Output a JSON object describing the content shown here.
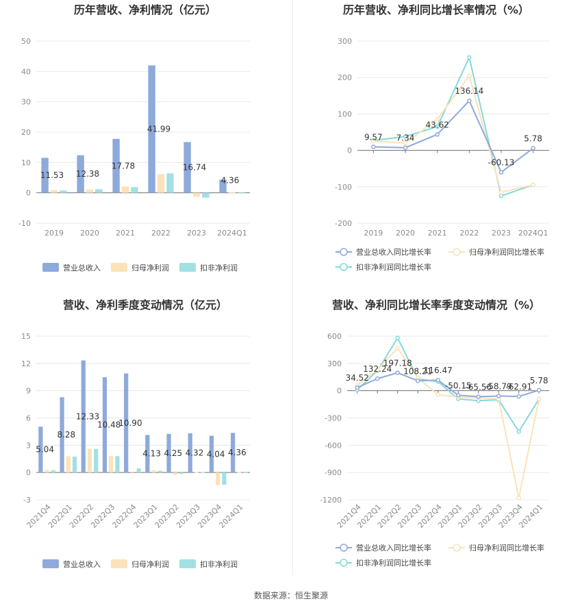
{
  "source": "数据来源：恒生聚源",
  "chart_data": [
    {
      "type": "bar",
      "title": "历年营收、净利情况（亿元）",
      "categories": [
        "2019",
        "2020",
        "2021",
        "2022",
        "2023",
        "2024Q1"
      ],
      "ylim": [
        -10,
        50
      ],
      "yticks": [
        -10,
        0,
        10,
        20,
        30,
        40,
        50
      ],
      "series": [
        {
          "name": "营业总收入",
          "color": "#8eaadb",
          "values": [
            11.53,
            12.38,
            17.78,
            41.99,
            16.74,
            4.36
          ],
          "labels": [
            "11.53",
            "12.38",
            "17.78",
            "41.99",
            "16.74",
            "4.36"
          ]
        },
        {
          "name": "归母净利润",
          "color": "#fbe2b8",
          "values": [
            0.9,
            1.1,
            2.1,
            6.2,
            -1.3,
            0.1
          ],
          "labels": []
        },
        {
          "name": "扣非净利润",
          "color": "#a3e0e3",
          "values": [
            0.8,
            1.2,
            1.9,
            6.4,
            -1.6,
            0.05
          ],
          "labels": []
        }
      ],
      "legend": "bottom"
    },
    {
      "type": "line",
      "title": "历年营收、净利同比增长率情况（%）",
      "categories": [
        "2019",
        "2020",
        "2021",
        "2022",
        "2023",
        "2024Q1"
      ],
      "ylim": [
        -200,
        300
      ],
      "yticks": [
        -200,
        -100,
        0,
        100,
        200,
        300
      ],
      "series": [
        {
          "name": "营业总收入同比增长率",
          "color": "#8eaadb",
          "values": [
            9.57,
            7.34,
            43.62,
            136.14,
            -60.13,
            5.78
          ],
          "labels": [
            "9.57",
            "7.34",
            "43.62",
            "136.14",
            "-60.13",
            "5.78"
          ]
        },
        {
          "name": "归母净利润同比增长率",
          "color": "#fbe2b8",
          "values": [
            25,
            20,
            85,
            205,
            -115,
            -95
          ],
          "labels": []
        },
        {
          "name": "扣非净利润同比增长率",
          "color": "#85d8db",
          "values": [
            27,
            38,
            65,
            255,
            -125,
            -95
          ],
          "labels": []
        }
      ],
      "legend": "bottom"
    },
    {
      "type": "bar",
      "title": "营收、净利季度变动情况（亿元）",
      "categories": [
        "2021Q4",
        "2022Q1",
        "2022Q2",
        "2022Q3",
        "2022Q4",
        "2023Q1",
        "2023Q2",
        "2023Q3",
        "2023Q4",
        "2024Q1"
      ],
      "ylim": [
        -3,
        15
      ],
      "yticks": [
        -3,
        0,
        3,
        6,
        9,
        12,
        15
      ],
      "series": [
        {
          "name": "营业总收入",
          "color": "#8eaadb",
          "values": [
            5.04,
            8.28,
            12.33,
            10.48,
            10.9,
            4.13,
            4.25,
            4.32,
            4.04,
            4.36
          ],
          "labels": [
            "5.04",
            "8.28",
            "12.33",
            "10.48",
            "10.90",
            "4.13",
            "4.25",
            "4.32",
            "4.04",
            "4.36"
          ]
        },
        {
          "name": "归母净利润",
          "color": "#fbe2b8",
          "values": [
            0.3,
            1.8,
            2.6,
            1.8,
            0.1,
            0.25,
            -0.25,
            0.05,
            -1.4,
            0.05
          ],
          "labels": []
        },
        {
          "name": "扣非净利润",
          "color": "#a3e0e3",
          "values": [
            0.25,
            1.75,
            2.6,
            1.8,
            0.45,
            0.2,
            -0.15,
            0.05,
            -1.35,
            0.03
          ],
          "labels": []
        }
      ],
      "legend": "bottom"
    },
    {
      "type": "line",
      "title": "营收、净利同比增长率季度变动情况（%）",
      "categories": [
        "2021Q4",
        "2022Q1",
        "2022Q2",
        "2022Q3",
        "2022Q4",
        "2023Q1",
        "2023Q2",
        "2023Q3",
        "2023Q4",
        "2024Q1"
      ],
      "ylim": [
        -1200,
        600
      ],
      "yticks": [
        -1200,
        -900,
        -600,
        -300,
        0,
        300,
        600
      ],
      "series": [
        {
          "name": "营业总收入同比增长率",
          "color": "#8eaadb",
          "values": [
            34.52,
            132.24,
            197.18,
            108.21,
            116.47,
            -50.15,
            -65.56,
            -58.79,
            -62.91,
            5.78
          ],
          "labels": [
            "34.52",
            "132.24",
            "197.18",
            "108.21",
            "116.47",
            "-50.15",
            "-65.56",
            "-58.79",
            "-62.91",
            "5.78"
          ]
        },
        {
          "name": "归母净利润同比增长率",
          "color": "#fbe2b8",
          "values": [
            60,
            230,
            470,
            140,
            -45,
            -70,
            -80,
            -90,
            -1180,
            -90
          ],
          "labels": []
        },
        {
          "name": "扣非净利润同比增长率",
          "color": "#85d8db",
          "values": [
            10,
            220,
            580,
            130,
            100,
            -90,
            -110,
            -100,
            -450,
            -90
          ],
          "labels": []
        }
      ],
      "legend": "bottom"
    }
  ]
}
